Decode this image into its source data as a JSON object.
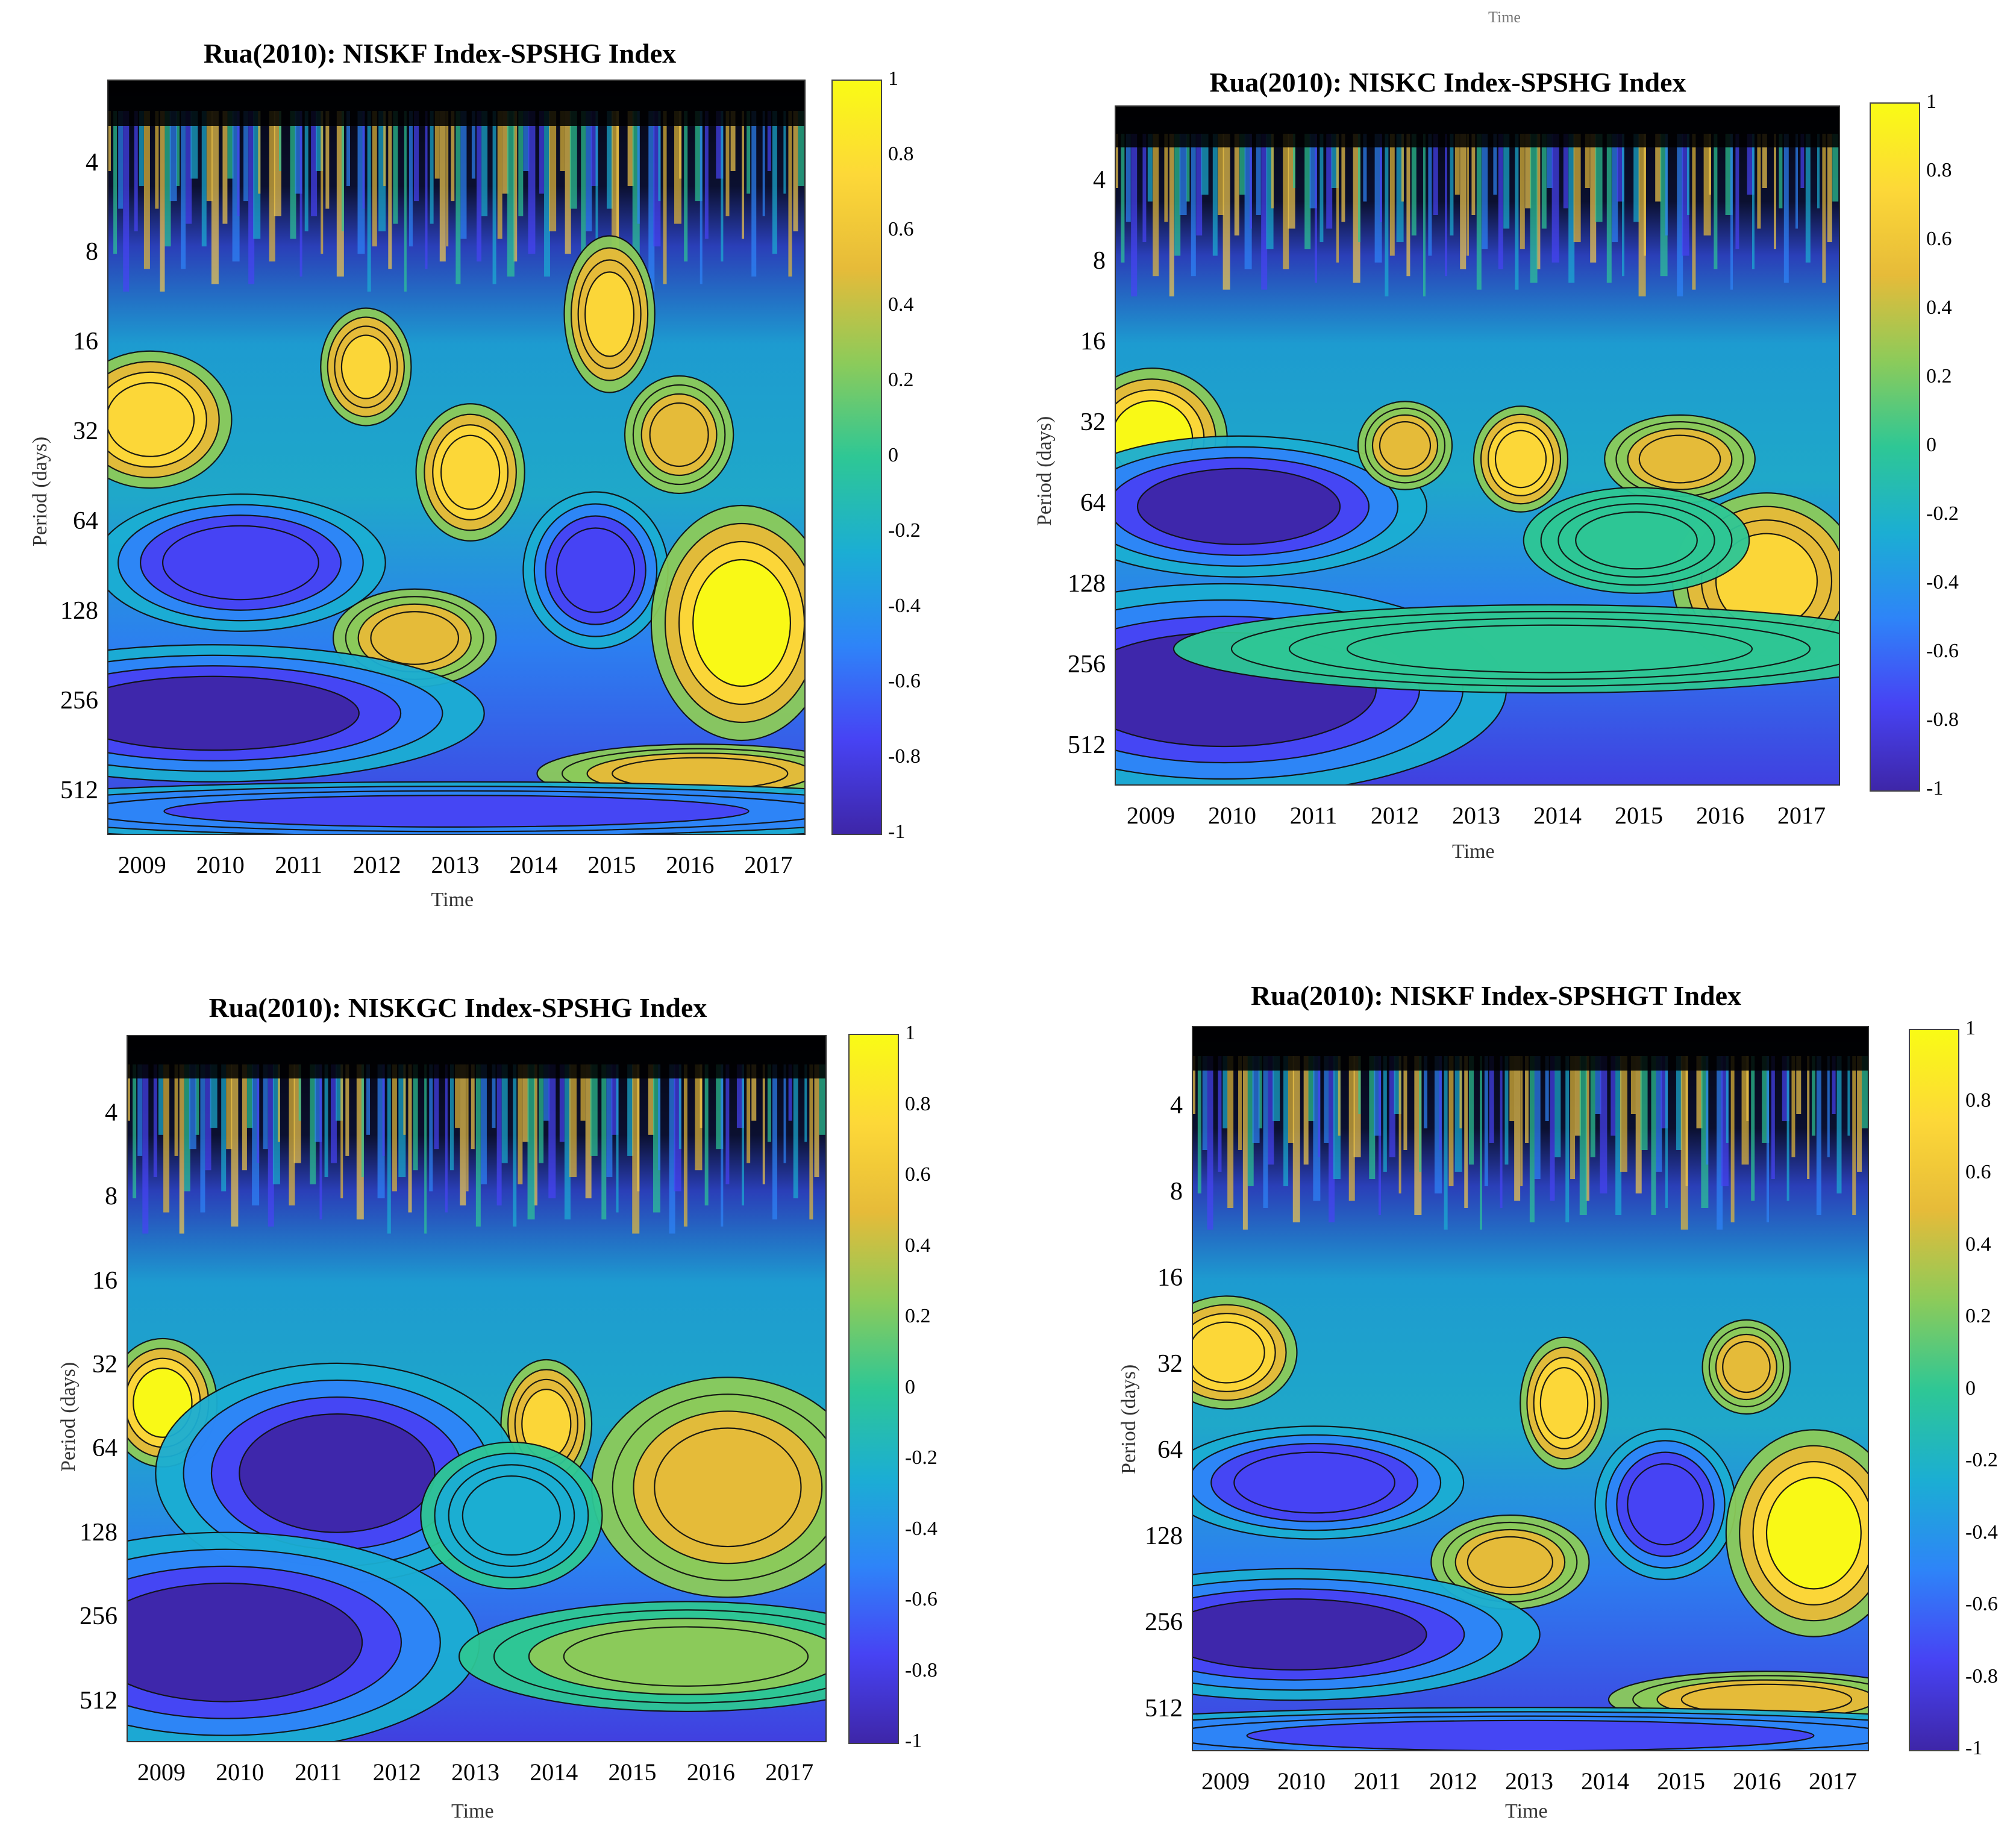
{
  "figure": {
    "partial_top_text": "Time",
    "partial_bottom_text": "Time"
  },
  "colormap": [
    "#3e26a8",
    "#4743f4",
    "#2e84f8",
    "#1baed3",
    "#2ec795",
    "#8ccb5a",
    "#e6bb39",
    "#fdd838",
    "#f9fb15"
  ],
  "chart_data": [
    {
      "type": "heatmap",
      "title": "Rua(2010): NISKF Index-SPSHG Index",
      "xlabel": "Time",
      "ylabel": "Period (days)",
      "x_ticks": [
        "2009",
        "2010",
        "2011",
        "2012",
        "2013",
        "2014",
        "2015",
        "2016",
        "2017"
      ],
      "y_ticks": [
        "4",
        "8",
        "16",
        "32",
        "64",
        "128",
        "256",
        "512"
      ],
      "y_scale": "log2",
      "colorbar_ticks": [
        "1",
        "0.8",
        "0.6",
        "0.4",
        "0.2",
        "0",
        "-0.2",
        "-0.4",
        "-0.6",
        "-0.8",
        "-1"
      ],
      "clim": [
        -1,
        1
      ],
      "grid": false,
      "blobs": [
        {
          "x": 0.06,
          "y": 0.45,
          "rx": 0.09,
          "ry": 0.07,
          "v": 0.8
        },
        {
          "x": 0.52,
          "y": 0.52,
          "rx": 0.06,
          "ry": 0.07,
          "v": 0.8
        },
        {
          "x": 0.82,
          "y": 0.47,
          "rx": 0.06,
          "ry": 0.06,
          "v": 0.6
        },
        {
          "x": 0.37,
          "y": 0.38,
          "rx": 0.05,
          "ry": 0.06,
          "v": 0.7
        },
        {
          "x": 0.72,
          "y": 0.31,
          "rx": 0.05,
          "ry": 0.08,
          "v": 0.7
        },
        {
          "x": 0.19,
          "y": 0.64,
          "rx": 0.16,
          "ry": 0.07,
          "v": -0.8
        },
        {
          "x": 0.7,
          "y": 0.65,
          "rx": 0.08,
          "ry": 0.08,
          "v": -0.8
        },
        {
          "x": 0.44,
          "y": 0.74,
          "rx": 0.09,
          "ry": 0.05,
          "v": 0.5
        },
        {
          "x": 0.91,
          "y": 0.72,
          "rx": 0.1,
          "ry": 0.12,
          "v": 0.9
        },
        {
          "x": 0.15,
          "y": 0.84,
          "rx": 0.3,
          "ry": 0.07,
          "v": -0.9
        },
        {
          "x": 0.85,
          "y": 0.92,
          "rx": 0.18,
          "ry": 0.03,
          "v": 0.6
        },
        {
          "x": 0.5,
          "y": 0.97,
          "rx": 0.6,
          "ry": 0.03,
          "v": -0.7
        }
      ]
    },
    {
      "type": "heatmap",
      "title": "Rua(2010): NISKC Index-SPSHG Index",
      "xlabel": "Time",
      "ylabel": "Period (days)",
      "x_ticks": [
        "2009",
        "2010",
        "2011",
        "2012",
        "2013",
        "2014",
        "2015",
        "2016",
        "2017"
      ],
      "y_ticks": [
        "4",
        "8",
        "16",
        "32",
        "64",
        "128",
        "256",
        "512"
      ],
      "y_scale": "log2",
      "colorbar_ticks": [
        "1",
        "0.8",
        "0.6",
        "0.4",
        "0.2",
        "0",
        "-0.2",
        "-0.4",
        "-0.6",
        "-0.8",
        "-1"
      ],
      "clim": [
        -1,
        1
      ],
      "grid": false,
      "blobs": [
        {
          "x": 0.05,
          "y": 0.49,
          "rx": 0.08,
          "ry": 0.08,
          "v": 0.9
        },
        {
          "x": 0.56,
          "y": 0.52,
          "rx": 0.05,
          "ry": 0.06,
          "v": 0.8
        },
        {
          "x": 0.9,
          "y": 0.7,
          "rx": 0.1,
          "ry": 0.1,
          "v": 0.7
        },
        {
          "x": 0.78,
          "y": 0.52,
          "rx": 0.08,
          "ry": 0.05,
          "v": 0.5
        },
        {
          "x": 0.17,
          "y": 0.59,
          "rx": 0.2,
          "ry": 0.08,
          "v": -0.9
        },
        {
          "x": 0.15,
          "y": 0.86,
          "rx": 0.3,
          "ry": 0.12,
          "v": -0.9
        },
        {
          "x": 0.4,
          "y": 0.5,
          "rx": 0.05,
          "ry": 0.05,
          "v": 0.6
        },
        {
          "x": 0.72,
          "y": 0.64,
          "rx": 0.12,
          "ry": 0.06,
          "v": 0.1
        },
        {
          "x": 0.6,
          "y": 0.8,
          "rx": 0.4,
          "ry": 0.05,
          "v": 0.0
        }
      ]
    },
    {
      "type": "heatmap",
      "title": "Rua(2010): NISKGC Index-SPSHG Index",
      "xlabel": "Time",
      "ylabel": "Period (days)",
      "x_ticks": [
        "2009",
        "2010",
        "2011",
        "2012",
        "2013",
        "2014",
        "2015",
        "2016",
        "2017"
      ],
      "y_ticks": [
        "4",
        "8",
        "16",
        "32",
        "64",
        "128",
        "256",
        "512"
      ],
      "y_scale": "log2",
      "colorbar_ticks": [
        "1",
        "0.8",
        "0.6",
        "0.4",
        "0.2",
        "0",
        "-0.2",
        "-0.4",
        "-0.6",
        "-0.8",
        "-1"
      ],
      "clim": [
        -1,
        1
      ],
      "grid": false,
      "blobs": [
        {
          "x": 0.05,
          "y": 0.52,
          "rx": 0.06,
          "ry": 0.07,
          "v": 0.9
        },
        {
          "x": 0.6,
          "y": 0.55,
          "rx": 0.05,
          "ry": 0.07,
          "v": 0.7
        },
        {
          "x": 0.86,
          "y": 0.64,
          "rx": 0.15,
          "ry": 0.12,
          "v": 0.6
        },
        {
          "x": 0.3,
          "y": 0.62,
          "rx": 0.2,
          "ry": 0.12,
          "v": -0.9
        },
        {
          "x": 0.14,
          "y": 0.86,
          "rx": 0.28,
          "ry": 0.12,
          "v": -0.9
        },
        {
          "x": 0.55,
          "y": 0.68,
          "rx": 0.1,
          "ry": 0.08,
          "v": -0.3
        },
        {
          "x": 0.8,
          "y": 0.88,
          "rx": 0.25,
          "ry": 0.06,
          "v": 0.2
        }
      ]
    },
    {
      "type": "heatmap",
      "title": "Rua(2010): NISKF Index-SPSHGT Index",
      "xlabel": "Time",
      "ylabel": "Period (days)",
      "x_ticks": [
        "2009",
        "2010",
        "2011",
        "2012",
        "2013",
        "2014",
        "2015",
        "2016",
        "2017"
      ],
      "y_ticks": [
        "4",
        "8",
        "16",
        "32",
        "64",
        "128",
        "256",
        "512"
      ],
      "y_scale": "log2",
      "colorbar_ticks": [
        "1",
        "0.8",
        "0.6",
        "0.4",
        "0.2",
        "0",
        "-0.2",
        "-0.4",
        "-0.6",
        "-0.8",
        "-1"
      ],
      "clim": [
        -1,
        1
      ],
      "grid": false,
      "blobs": [
        {
          "x": 0.05,
          "y": 0.45,
          "rx": 0.08,
          "ry": 0.06,
          "v": 0.8
        },
        {
          "x": 0.55,
          "y": 0.52,
          "rx": 0.05,
          "ry": 0.07,
          "v": 0.8
        },
        {
          "x": 0.82,
          "y": 0.47,
          "rx": 0.05,
          "ry": 0.05,
          "v": 0.6
        },
        {
          "x": 0.18,
          "y": 0.63,
          "rx": 0.17,
          "ry": 0.06,
          "v": -0.8
        },
        {
          "x": 0.7,
          "y": 0.66,
          "rx": 0.08,
          "ry": 0.08,
          "v": -0.8
        },
        {
          "x": 0.47,
          "y": 0.74,
          "rx": 0.09,
          "ry": 0.05,
          "v": 0.6
        },
        {
          "x": 0.92,
          "y": 0.7,
          "rx": 0.1,
          "ry": 0.11,
          "v": 0.9
        },
        {
          "x": 0.15,
          "y": 0.84,
          "rx": 0.28,
          "ry": 0.07,
          "v": -0.9
        },
        {
          "x": 0.85,
          "y": 0.93,
          "rx": 0.18,
          "ry": 0.03,
          "v": 0.6
        },
        {
          "x": 0.5,
          "y": 0.98,
          "rx": 0.6,
          "ry": 0.03,
          "v": -0.7
        }
      ]
    }
  ]
}
